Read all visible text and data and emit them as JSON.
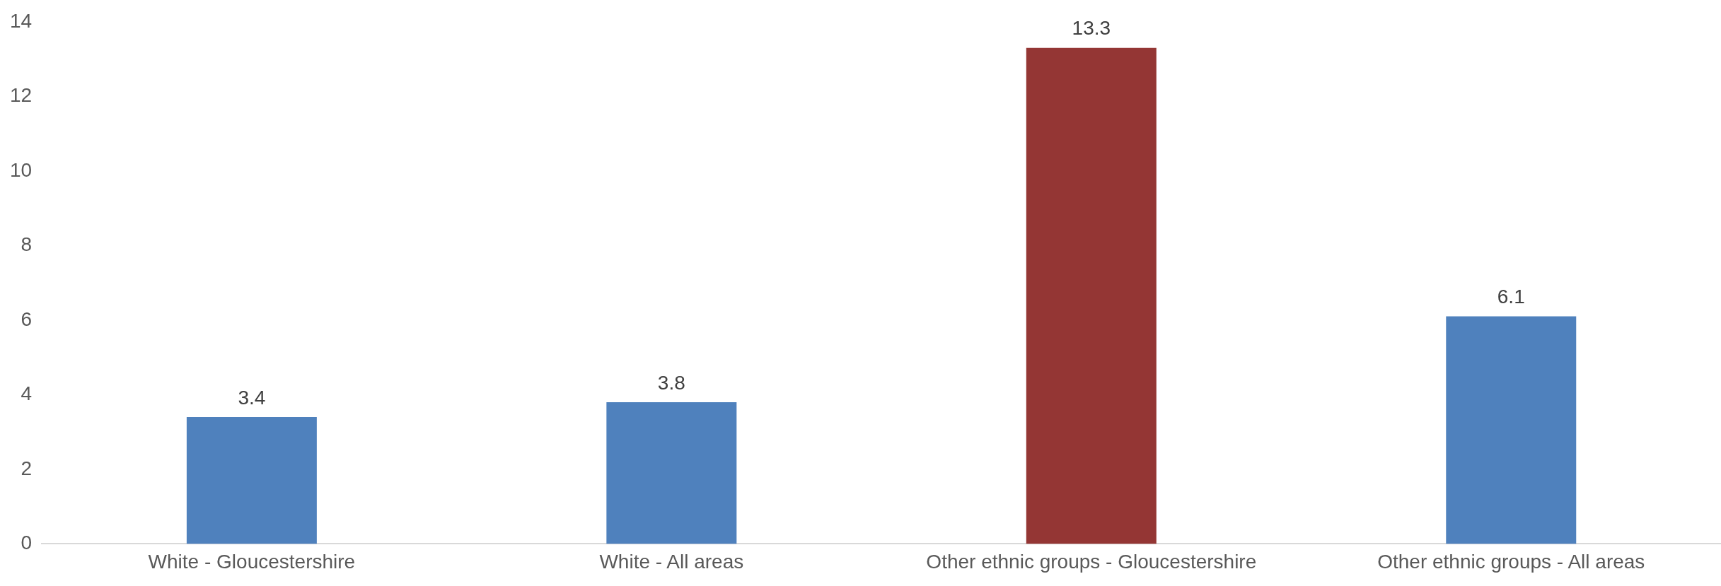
{
  "chart_data": {
    "type": "bar",
    "categories": [
      "White - Gloucestershire",
      "White - All areas",
      "Other ethnic groups - Gloucestershire",
      "Other ethnic groups - All areas"
    ],
    "values": [
      3.4,
      3.8,
      13.3,
      6.1
    ],
    "colors": [
      "#4f81bd",
      "#4f81bd",
      "#943634",
      "#4f81bd"
    ],
    "ylim": [
      0,
      14
    ],
    "yticks": [
      0,
      2,
      4,
      6,
      8,
      10,
      12,
      14
    ],
    "data_labels": true
  }
}
